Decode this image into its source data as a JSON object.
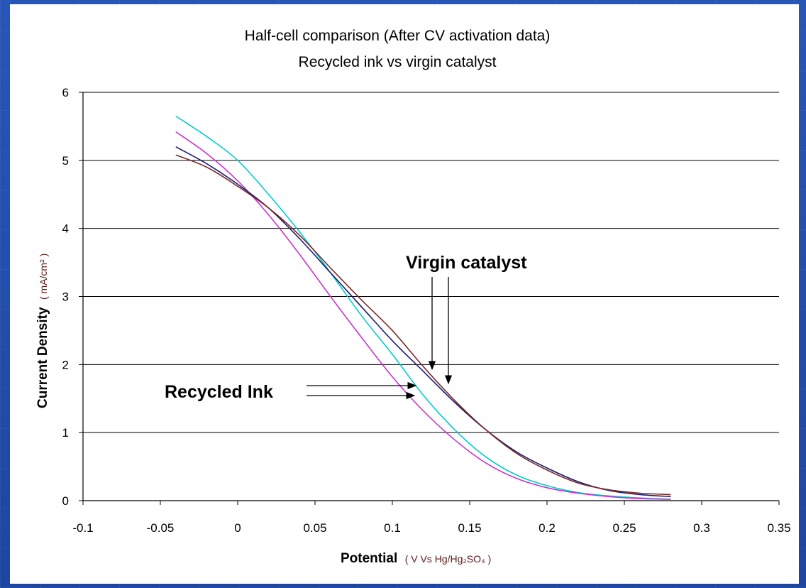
{
  "slide": {
    "background": "#1f4aa8"
  },
  "chart_data": {
    "type": "line",
    "title": "Half-cell comparison (After CV activation data)",
    "subtitle": "Recycled ink vs virgin catalyst",
    "xlabel": "Potential",
    "xlabel_unit": "( V Vs Hg/Hg₂SO₄ )",
    "ylabel": "Current Density",
    "ylabel_unit": "( mA/cm² )",
    "xlim": [
      -0.1,
      0.35
    ],
    "ylim": [
      0,
      6
    ],
    "x_ticks": [
      "-0.1",
      "-0.05",
      "0",
      "0.05",
      "0.1",
      "0.15",
      "0.2",
      "0.25",
      "0.3",
      "0.35"
    ],
    "y_ticks": [
      "0",
      "1",
      "2",
      "3",
      "4",
      "5",
      "6"
    ],
    "grid": "horizontal",
    "annotations": [
      {
        "text": "Virgin catalyst",
        "target": "virgin catalyst curves"
      },
      {
        "text": "Recycled Ink",
        "target": "recycled ink curves"
      }
    ],
    "series": [
      {
        "color": "#00cccc",
        "x": [
          -0.04,
          -0.02,
          0,
          0.02,
          0.04,
          0.06,
          0.08,
          0.1,
          0.12,
          0.14,
          0.16,
          0.18,
          0.2,
          0.22,
          0.24,
          0.26,
          0.28
        ],
        "y": [
          5.65,
          5.35,
          5.0,
          4.5,
          3.95,
          3.35,
          2.72,
          2.15,
          1.55,
          1.05,
          0.65,
          0.38,
          0.22,
          0.12,
          0.07,
          0.04,
          0.02
        ]
      },
      {
        "color": "#cc33cc",
        "x": [
          -0.04,
          -0.02,
          0,
          0.02,
          0.04,
          0.06,
          0.08,
          0.1,
          0.12,
          0.14,
          0.16,
          0.18,
          0.2,
          0.22,
          0.24,
          0.26,
          0.28
        ],
        "y": [
          5.42,
          5.1,
          4.7,
          4.2,
          3.62,
          3.0,
          2.4,
          1.82,
          1.32,
          0.9,
          0.56,
          0.33,
          0.19,
          0.11,
          0.06,
          0.03,
          0.02
        ]
      },
      {
        "color": "#1a1a6e",
        "x": [
          -0.04,
          -0.02,
          0,
          0.02,
          0.04,
          0.06,
          0.08,
          0.1,
          0.12,
          0.14,
          0.16,
          0.18,
          0.2,
          0.22,
          0.24,
          0.26,
          0.28
        ],
        "y": [
          5.2,
          4.95,
          4.65,
          4.3,
          3.85,
          3.35,
          2.85,
          2.35,
          1.9,
          1.45,
          1.05,
          0.72,
          0.48,
          0.28,
          0.15,
          0.09,
          0.06
        ]
      },
      {
        "color": "#7a2a2a",
        "x": [
          -0.04,
          -0.02,
          0,
          0.02,
          0.04,
          0.06,
          0.08,
          0.1,
          0.12,
          0.14,
          0.16,
          0.18,
          0.2,
          0.22,
          0.24,
          0.26,
          0.28
        ],
        "y": [
          5.08,
          4.9,
          4.62,
          4.3,
          3.9,
          3.42,
          2.95,
          2.5,
          1.97,
          1.48,
          1.05,
          0.7,
          0.45,
          0.26,
          0.16,
          0.11,
          0.09
        ]
      }
    ]
  }
}
